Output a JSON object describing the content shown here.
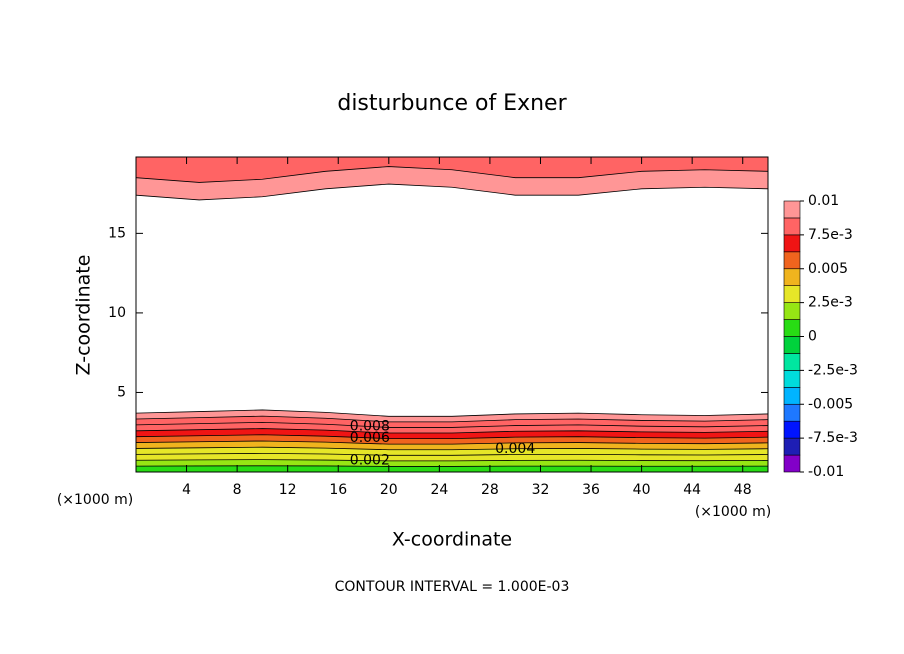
{
  "chart_data": {
    "type": "contour",
    "title": "disturbunce of Exner",
    "xlabel": "X-coordinate",
    "ylabel": "Z-coordinate",
    "x_unit": "(×1000 m)",
    "footer": "CONTOUR INTERVAL = 1.000E-03",
    "xlim": [
      0,
      50
    ],
    "xticks": [
      4,
      8,
      12,
      16,
      20,
      24,
      28,
      32,
      36,
      40,
      44,
      48
    ],
    "ylim": [
      0,
      19.8
    ],
    "yticks": [
      5,
      10,
      15
    ],
    "x": [
      0,
      5,
      10,
      15,
      20,
      25,
      30,
      35,
      40,
      45,
      50
    ],
    "contours": [
      {
        "level": 0.001,
        "z": [
          0.37,
          0.38,
          0.39,
          0.38,
          0.35,
          0.35,
          0.37,
          0.37,
          0.36,
          0.36,
          0.37
        ]
      },
      {
        "level": 0.002,
        "z": [
          0.74,
          0.76,
          0.78,
          0.75,
          0.7,
          0.7,
          0.73,
          0.74,
          0.72,
          0.71,
          0.73
        ]
      },
      {
        "level": 0.003,
        "z": [
          1.11,
          1.14,
          1.17,
          1.13,
          1.05,
          1.05,
          1.1,
          1.11,
          1.08,
          1.07,
          1.1
        ]
      },
      {
        "level": 0.004,
        "z": [
          1.48,
          1.52,
          1.56,
          1.5,
          1.4,
          1.4,
          1.46,
          1.48,
          1.44,
          1.42,
          1.46
        ]
      },
      {
        "level": 0.005,
        "z": [
          1.85,
          1.9,
          1.95,
          1.88,
          1.75,
          1.75,
          1.83,
          1.85,
          1.8,
          1.78,
          1.83
        ]
      },
      {
        "level": 0.006,
        "z": [
          2.22,
          2.28,
          2.34,
          2.25,
          2.1,
          2.1,
          2.19,
          2.22,
          2.16,
          2.13,
          2.19
        ]
      },
      {
        "level": 0.007,
        "z": [
          2.59,
          2.66,
          2.73,
          2.63,
          2.45,
          2.45,
          2.56,
          2.59,
          2.52,
          2.49,
          2.56
        ]
      },
      {
        "level": 0.008,
        "z": [
          2.96,
          3.04,
          3.12,
          3.0,
          2.8,
          2.8,
          2.92,
          2.96,
          2.88,
          2.84,
          2.92
        ]
      },
      {
        "level": 0.009,
        "z": [
          3.33,
          3.42,
          3.51,
          3.38,
          3.15,
          3.15,
          3.29,
          3.33,
          3.24,
          3.2,
          3.29
        ]
      },
      {
        "level": 0.01,
        "z": [
          3.7,
          3.8,
          3.9,
          3.75,
          3.5,
          3.5,
          3.65,
          3.7,
          3.6,
          3.55,
          3.65
        ]
      },
      {
        "level": 0.01,
        "z": [
          17.4,
          17.1,
          17.3,
          17.8,
          18.1,
          17.9,
          17.4,
          17.4,
          17.8,
          17.9,
          17.8
        ]
      },
      {
        "level": 0.009,
        "z": [
          18.5,
          18.2,
          18.4,
          18.9,
          19.2,
          19.0,
          18.5,
          18.5,
          18.9,
          19.0,
          18.9
        ]
      }
    ],
    "colorbar": {
      "levels": [
        -0.01,
        -0.00875,
        -0.0075,
        -0.00625,
        -0.005,
        -0.00375,
        -0.0025,
        -0.00125,
        0,
        0.00125,
        0.0025,
        0.00375,
        0.005,
        0.00625,
        0.0075,
        0.00875,
        0.01
      ],
      "colors": [
        "#8200c8",
        "#1e1eb4",
        "#0014ff",
        "#1e78ff",
        "#00b4ff",
        "#00dcdc",
        "#00e6a0",
        "#00d23c",
        "#28dc14",
        "#96e614",
        "#e6e628",
        "#f0b41e",
        "#f0641e",
        "#f01414",
        "#ff6464",
        "#ff9696"
      ],
      "ticks": [
        0.01,
        {
          "value": 0.0075,
          "label": "7.5e-3"
        },
        0.005,
        {
          "value": 0.0025,
          "label": "2.5e-3"
        },
        0,
        {
          "value": -0.0025,
          "label": "-2.5e-3"
        },
        -0.005,
        {
          "value": -0.0075,
          "label": "-7.5e-3"
        },
        -0.01
      ]
    }
  }
}
